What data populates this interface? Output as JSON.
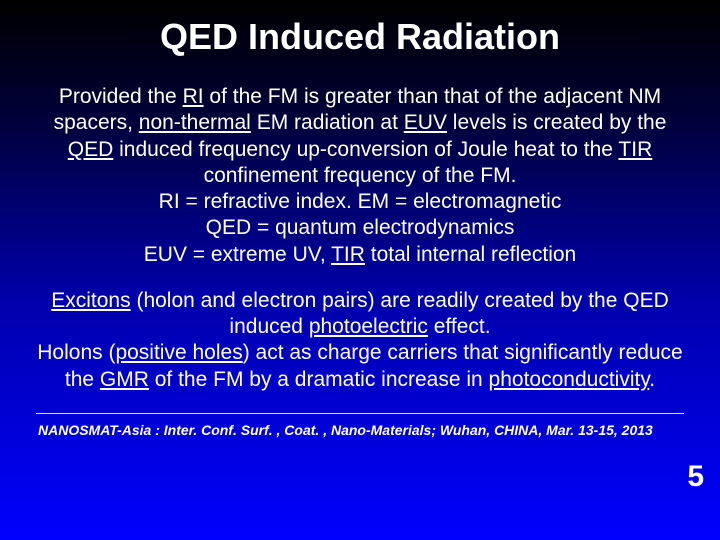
{
  "slide": {
    "background_gradient": [
      "#000000",
      "#000033",
      "#0000aa",
      "#0000ff"
    ],
    "text_color": "#ffffff",
    "title": "QED Induced Radiation",
    "title_fontsize": 36,
    "body_fontsize": 21,
    "p1_t1": "Provided the ",
    "p1_u1": "RI",
    "p1_t2": " of the FM is greater than that of the adjacent NM spacers, ",
    "p1_u2": "non-thermal",
    "p1_t3": " EM radiation at ",
    "p1_u3": "EUV",
    "p1_t4": " levels is created by the ",
    "p1_u4": "QED",
    "p1_t5": " induced frequency up-conversion of Joule heat to the ",
    "p1_u5": "TIR",
    "p1_t6": " confinement frequency of the FM.",
    "p1_line2a": "RI = refractive index. EM = electromagnetic",
    "p1_line3a": "QED = quantum electrodynamics",
    "p1_line4_t1": "EUV = extreme UV, ",
    "p1_line4_u1": "TIR",
    "p1_line4_t2": " total internal reflection",
    "p2_u1": "Excitons",
    "p2_t1": " (holon and electron pairs) are readily created by the QED induced ",
    "p2_u2": "photoelectric",
    "p2_t2": " effect.",
    "p2_t3": "Holons (",
    "p2_u3": "positive holes",
    "p2_t4": ") act as charge carriers that significantly reduce the ",
    "p2_u4": "GMR",
    "p2_t5": " of the FM by a dramatic increase in ",
    "p2_u5": "photoconductivity",
    "p2_t6": ".",
    "footer": "NANOSMAT-Asia : Inter. Conf. Surf. , Coat. , Nano-Materials; Wuhan, CHINA, Mar. 13-15, 2013",
    "footer_fontsize": 14,
    "page_number": "5",
    "page_number_fontsize": 30
  }
}
